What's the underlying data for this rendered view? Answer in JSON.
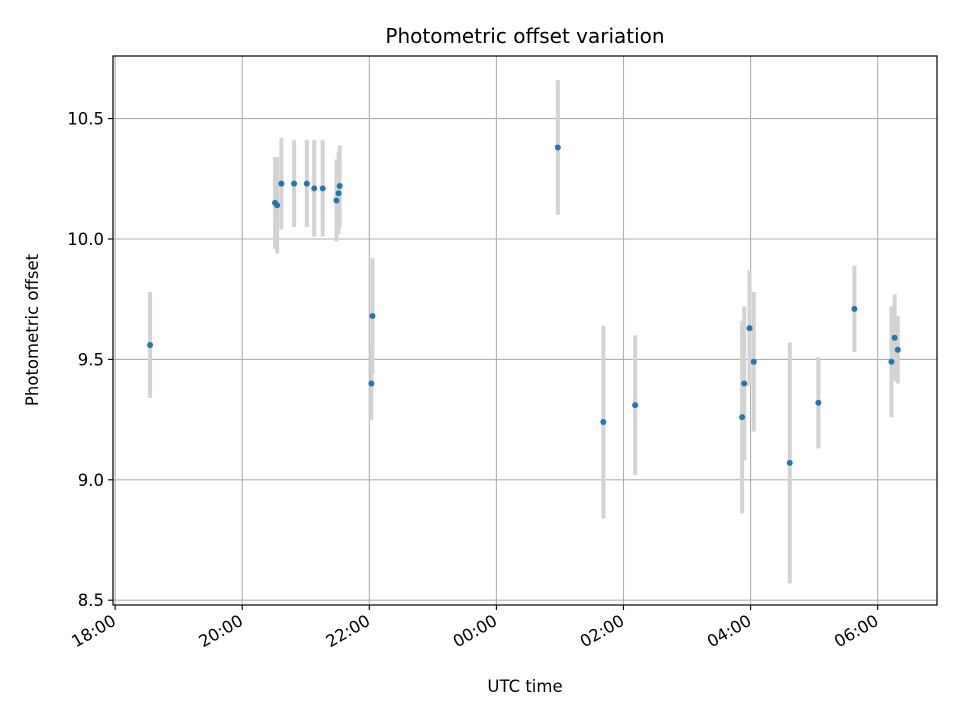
{
  "chart_data": {
    "type": "scatter",
    "title": "Photometric offset variation",
    "xlabel": "UTC time",
    "ylabel": "Photometric offset",
    "x_axis": {
      "scale": "time",
      "start": "2000-01-01T17:58",
      "end": "2000-01-02T06:56",
      "ticks": [
        {
          "t": "2000-01-01T18:00",
          "label": "18:00"
        },
        {
          "t": "2000-01-01T20:00",
          "label": "20:00"
        },
        {
          "t": "2000-01-01T22:00",
          "label": "22:00"
        },
        {
          "t": "2000-01-02T00:00",
          "label": "00:00"
        },
        {
          "t": "2000-01-02T02:00",
          "label": "02:00"
        },
        {
          "t": "2000-01-02T04:00",
          "label": "04:00"
        },
        {
          "t": "2000-01-02T06:00",
          "label": "06:00"
        }
      ]
    },
    "ylim": [
      8.48,
      10.76
    ],
    "yticks": [
      8.5,
      9.0,
      9.5,
      10.0,
      10.5
    ],
    "ytick_labels": [
      "8.5",
      "9.0",
      "9.5",
      "10.0",
      "10.5"
    ],
    "grid": true,
    "point_color": "#1f77b4",
    "errorbar_color": "#d3d3d3",
    "points": [
      {
        "t": "2000-01-01T18:33",
        "y": 9.56,
        "err": 0.22
      },
      {
        "t": "2000-01-01T20:31",
        "y": 10.15,
        "err": 0.19
      },
      {
        "t": "2000-01-01T20:33",
        "y": 10.14,
        "err": 0.2
      },
      {
        "t": "2000-01-01T20:37",
        "y": 10.23,
        "err": 0.19
      },
      {
        "t": "2000-01-01T20:49",
        "y": 10.23,
        "err": 0.18
      },
      {
        "t": "2000-01-01T21:01",
        "y": 10.23,
        "err": 0.18
      },
      {
        "t": "2000-01-01T21:08",
        "y": 10.21,
        "err": 0.2
      },
      {
        "t": "2000-01-01T21:16",
        "y": 10.21,
        "err": 0.2
      },
      {
        "t": "2000-01-01T21:29",
        "y": 10.16,
        "err": 0.17
      },
      {
        "t": "2000-01-01T21:31",
        "y": 10.19,
        "err": 0.17
      },
      {
        "t": "2000-01-01T21:32",
        "y": 10.22,
        "err": 0.17
      },
      {
        "t": "2000-01-01T22:02",
        "y": 9.4,
        "err": 0.15
      },
      {
        "t": "2000-01-01T22:03",
        "y": 9.68,
        "err": 0.24
      },
      {
        "t": "2000-01-02T00:58",
        "y": 10.38,
        "err": 0.28
      },
      {
        "t": "2000-01-02T01:41",
        "y": 9.24,
        "err": 0.4
      },
      {
        "t": "2000-01-02T02:11",
        "y": 9.31,
        "err": 0.29
      },
      {
        "t": "2000-01-02T03:52",
        "y": 9.26,
        "err": 0.4
      },
      {
        "t": "2000-01-02T03:54",
        "y": 9.4,
        "err": 0.32
      },
      {
        "t": "2000-01-02T03:59",
        "y": 9.63,
        "err": 0.24
      },
      {
        "t": "2000-01-02T04:03",
        "y": 9.49,
        "err": 0.29
      },
      {
        "t": "2000-01-02T04:37",
        "y": 9.07,
        "err": 0.5
      },
      {
        "t": "2000-01-02T05:04",
        "y": 9.32,
        "err": 0.19
      },
      {
        "t": "2000-01-02T05:38",
        "y": 9.71,
        "err": 0.18
      },
      {
        "t": "2000-01-02T06:13",
        "y": 9.49,
        "err": 0.23
      },
      {
        "t": "2000-01-02T06:16",
        "y": 9.59,
        "err": 0.18
      },
      {
        "t": "2000-01-02T06:19",
        "y": 9.54,
        "err": 0.14
      }
    ]
  }
}
